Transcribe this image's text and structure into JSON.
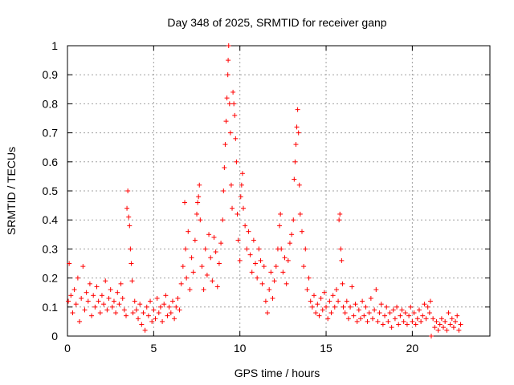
{
  "chart_data": {
    "type": "scatter",
    "title": "Day 348 of 2025, SRMTID for receiver ganp",
    "xlabel": "GPS time / hours",
    "ylabel": "SRMTID / TECUs",
    "xlim": [
      0,
      24.5
    ],
    "ylim": [
      0,
      1
    ],
    "xticks": [
      0,
      5,
      10,
      15,
      20
    ],
    "xtick_labels": [
      "0",
      "5",
      "10",
      "15",
      "20"
    ],
    "yticks": [
      0,
      0.1,
      0.2,
      0.3,
      0.4,
      0.5,
      0.6,
      0.7,
      0.8,
      0.9,
      1
    ],
    "ytick_labels": [
      "0",
      "0.1",
      "0.2",
      "0.3",
      "0.4",
      "0.5",
      "0.6",
      "0.7",
      "0.8",
      "0.9",
      "1"
    ],
    "grid": true,
    "marker": "+",
    "color": "#ff0000",
    "series": [
      {
        "name": "SRMTID",
        "points": [
          [
            0.05,
            0.12
          ],
          [
            0.1,
            0.25
          ],
          [
            0.2,
            0.14
          ],
          [
            0.3,
            0.08
          ],
          [
            0.4,
            0.16
          ],
          [
            0.5,
            0.11
          ],
          [
            0.6,
            0.2
          ],
          [
            0.7,
            0.05
          ],
          [
            0.8,
            0.13
          ],
          [
            0.9,
            0.24
          ],
          [
            1.0,
            0.09
          ],
          [
            1.1,
            0.15
          ],
          [
            1.2,
            0.12
          ],
          [
            1.3,
            0.18
          ],
          [
            1.4,
            0.07
          ],
          [
            1.5,
            0.14
          ],
          [
            1.6,
            0.1
          ],
          [
            1.7,
            0.17
          ],
          [
            1.8,
            0.12
          ],
          [
            1.9,
            0.08
          ],
          [
            2.0,
            0.14
          ],
          [
            2.1,
            0.11
          ],
          [
            2.2,
            0.19
          ],
          [
            2.3,
            0.09
          ],
          [
            2.4,
            0.13
          ],
          [
            2.5,
            0.16
          ],
          [
            2.6,
            0.1
          ],
          [
            2.7,
            0.12
          ],
          [
            2.8,
            0.08
          ],
          [
            2.9,
            0.15
          ],
          [
            3.0,
            0.11
          ],
          [
            3.1,
            0.18
          ],
          [
            3.2,
            0.13
          ],
          [
            3.3,
            0.09
          ],
          [
            3.4,
            0.07
          ],
          [
            3.45,
            0.44
          ],
          [
            3.5,
            0.5
          ],
          [
            3.55,
            0.41
          ],
          [
            3.6,
            0.38
          ],
          [
            3.65,
            0.3
          ],
          [
            3.7,
            0.25
          ],
          [
            3.75,
            0.19
          ],
          [
            3.8,
            0.08
          ],
          [
            3.9,
            0.12
          ],
          [
            4.0,
            0.09
          ],
          [
            4.1,
            0.06
          ],
          [
            4.2,
            0.11
          ],
          [
            4.3,
            0.04
          ],
          [
            4.4,
            0.08
          ],
          [
            4.5,
            0.02
          ],
          [
            4.6,
            0.1
          ],
          [
            4.7,
            0.07
          ],
          [
            4.8,
            0.12
          ],
          [
            4.9,
            0.05
          ],
          [
            5.0,
            0.09
          ],
          [
            5.1,
            0.06
          ],
          [
            5.2,
            0.13
          ],
          [
            5.3,
            0.08
          ],
          [
            5.4,
            0.1
          ],
          [
            5.5,
            0.05
          ],
          [
            5.6,
            0.11
          ],
          [
            5.7,
            0.14
          ],
          [
            5.8,
            0.07
          ],
          [
            5.9,
            0.1
          ],
          [
            6.0,
            0.08
          ],
          [
            6.1,
            0.12
          ],
          [
            6.2,
            0.06
          ],
          [
            6.3,
            0.1
          ],
          [
            6.4,
            0.13
          ],
          [
            6.5,
            0.09
          ],
          [
            6.6,
            0.18
          ],
          [
            6.7,
            0.24
          ],
          [
            6.8,
            0.46
          ],
          [
            6.85,
            0.3
          ],
          [
            6.9,
            0.2
          ],
          [
            7.0,
            0.36
          ],
          [
            7.1,
            0.16
          ],
          [
            7.2,
            0.27
          ],
          [
            7.3,
            0.22
          ],
          [
            7.4,
            0.33
          ],
          [
            7.5,
            0.42
          ],
          [
            7.55,
            0.46
          ],
          [
            7.6,
            0.48
          ],
          [
            7.65,
            0.52
          ],
          [
            7.7,
            0.4
          ],
          [
            7.8,
            0.24
          ],
          [
            7.9,
            0.16
          ],
          [
            8.0,
            0.3
          ],
          [
            8.1,
            0.21
          ],
          [
            8.2,
            0.35
          ],
          [
            8.3,
            0.27
          ],
          [
            8.4,
            0.19
          ],
          [
            8.5,
            0.34
          ],
          [
            8.6,
            0.29
          ],
          [
            8.7,
            0.17
          ],
          [
            8.8,
            0.25
          ],
          [
            8.9,
            0.32
          ],
          [
            9.0,
            0.4
          ],
          [
            9.05,
            0.5
          ],
          [
            9.1,
            0.58
          ],
          [
            9.15,
            0.66
          ],
          [
            9.2,
            0.74
          ],
          [
            9.25,
            0.82
          ],
          [
            9.3,
            0.9
          ],
          [
            9.32,
            0.95
          ],
          [
            9.35,
            1.0
          ],
          [
            9.4,
            0.8
          ],
          [
            9.45,
            0.7
          ],
          [
            9.5,
            0.52
          ],
          [
            9.55,
            0.44
          ],
          [
            9.6,
            0.84
          ],
          [
            9.65,
            0.8
          ],
          [
            9.7,
            0.76
          ],
          [
            9.75,
            0.68
          ],
          [
            9.8,
            0.6
          ],
          [
            9.85,
            0.42
          ],
          [
            9.9,
            0.33
          ],
          [
            10.0,
            0.26
          ],
          [
            10.05,
            0.48
          ],
          [
            10.1,
            0.52
          ],
          [
            10.15,
            0.56
          ],
          [
            10.2,
            0.44
          ],
          [
            10.3,
            0.38
          ],
          [
            10.4,
            0.3
          ],
          [
            10.5,
            0.36
          ],
          [
            10.6,
            0.28
          ],
          [
            10.7,
            0.22
          ],
          [
            10.8,
            0.33
          ],
          [
            10.9,
            0.25
          ],
          [
            11.0,
            0.2
          ],
          [
            11.1,
            0.3
          ],
          [
            11.2,
            0.26
          ],
          [
            11.3,
            0.18
          ],
          [
            11.4,
            0.24
          ],
          [
            11.5,
            0.12
          ],
          [
            11.6,
            0.08
          ],
          [
            11.7,
            0.16
          ],
          [
            11.8,
            0.22
          ],
          [
            11.9,
            0.13
          ],
          [
            12.0,
            0.19
          ],
          [
            12.1,
            0.24
          ],
          [
            12.2,
            0.3
          ],
          [
            12.3,
            0.38
          ],
          [
            12.35,
            0.42
          ],
          [
            12.4,
            0.3
          ],
          [
            12.5,
            0.22
          ],
          [
            12.6,
            0.27
          ],
          [
            12.7,
            0.18
          ],
          [
            12.8,
            0.26
          ],
          [
            12.9,
            0.32
          ],
          [
            13.0,
            0.35
          ],
          [
            13.1,
            0.4
          ],
          [
            13.15,
            0.54
          ],
          [
            13.2,
            0.6
          ],
          [
            13.25,
            0.66
          ],
          [
            13.3,
            0.72
          ],
          [
            13.35,
            0.78
          ],
          [
            13.4,
            0.7
          ],
          [
            13.45,
            0.52
          ],
          [
            13.5,
            0.42
          ],
          [
            13.6,
            0.36
          ],
          [
            13.7,
            0.24
          ],
          [
            13.8,
            0.3
          ],
          [
            13.9,
            0.16
          ],
          [
            14.0,
            0.2
          ],
          [
            14.1,
            0.12
          ],
          [
            14.2,
            0.1
          ],
          [
            14.3,
            0.14
          ],
          [
            14.4,
            0.08
          ],
          [
            14.5,
            0.11
          ],
          [
            14.6,
            0.07
          ],
          [
            14.7,
            0.13
          ],
          [
            14.8,
            0.09
          ],
          [
            14.9,
            0.15
          ],
          [
            15.0,
            0.1
          ],
          [
            15.1,
            0.06
          ],
          [
            15.2,
            0.12
          ],
          [
            15.3,
            0.08
          ],
          [
            15.4,
            0.14
          ],
          [
            15.5,
            0.1
          ],
          [
            15.6,
            0.16
          ],
          [
            15.7,
            0.12
          ],
          [
            15.75,
            0.4
          ],
          [
            15.8,
            0.42
          ],
          [
            15.85,
            0.3
          ],
          [
            15.9,
            0.26
          ],
          [
            15.95,
            0.18
          ],
          [
            16.0,
            0.1
          ],
          [
            16.1,
            0.08
          ],
          [
            16.2,
            0.12
          ],
          [
            16.3,
            0.06
          ],
          [
            16.4,
            0.1
          ],
          [
            16.5,
            0.17
          ],
          [
            16.6,
            0.07
          ],
          [
            16.7,
            0.11
          ],
          [
            16.8,
            0.05
          ],
          [
            16.9,
            0.09
          ],
          [
            17.0,
            0.06
          ],
          [
            17.1,
            0.12
          ],
          [
            17.2,
            0.07
          ],
          [
            17.3,
            0.1
          ],
          [
            17.4,
            0.05
          ],
          [
            17.5,
            0.08
          ],
          [
            17.6,
            0.13
          ],
          [
            17.7,
            0.06
          ],
          [
            17.8,
            0.09
          ],
          [
            17.9,
            0.16
          ],
          [
            18.0,
            0.05
          ],
          [
            18.1,
            0.08
          ],
          [
            18.2,
            0.11
          ],
          [
            18.3,
            0.04
          ],
          [
            18.4,
            0.07
          ],
          [
            18.5,
            0.1
          ],
          [
            18.6,
            0.05
          ],
          [
            18.7,
            0.08
          ],
          [
            18.8,
            0.03
          ],
          [
            18.9,
            0.09
          ],
          [
            19.0,
            0.06
          ],
          [
            19.1,
            0.1
          ],
          [
            19.2,
            0.04
          ],
          [
            19.3,
            0.07
          ],
          [
            19.4,
            0.09
          ],
          [
            19.5,
            0.05
          ],
          [
            19.6,
            0.08
          ],
          [
            19.7,
            0.04
          ],
          [
            19.8,
            0.07
          ],
          [
            19.9,
            0.1
          ],
          [
            20.0,
            0.05
          ],
          [
            20.1,
            0.08
          ],
          [
            20.2,
            0.04
          ],
          [
            20.3,
            0.06
          ],
          [
            20.4,
            0.09
          ],
          [
            20.5,
            0.05
          ],
          [
            20.6,
            0.07
          ],
          [
            20.7,
            0.11
          ],
          [
            20.8,
            0.06
          ],
          [
            20.9,
            0.1
          ],
          [
            21.0,
            0.08
          ],
          [
            21.05,
            0.12
          ],
          [
            21.1,
            0.0
          ],
          [
            21.2,
            0.06
          ],
          [
            21.3,
            0.03
          ],
          [
            21.4,
            0.05
          ],
          [
            21.5,
            0.02
          ],
          [
            21.6,
            0.04
          ],
          [
            21.7,
            0.06
          ],
          [
            21.8,
            0.03
          ],
          [
            21.9,
            0.05
          ],
          [
            22.0,
            0.02
          ],
          [
            22.1,
            0.08
          ],
          [
            22.2,
            0.04
          ],
          [
            22.3,
            0.06
          ],
          [
            22.4,
            0.03
          ],
          [
            22.5,
            0.05
          ],
          [
            22.6,
            0.07
          ],
          [
            22.7,
            0.02
          ],
          [
            22.8,
            0.04
          ]
        ]
      }
    ]
  }
}
